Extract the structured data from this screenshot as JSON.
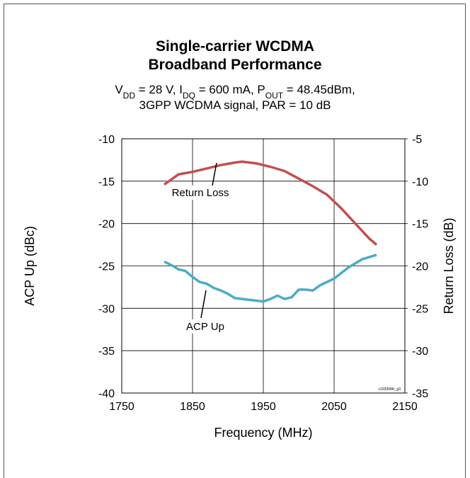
{
  "chart_data": {
    "type": "line",
    "title": [
      "Single-carrier WCDMA",
      "Broadband Performance"
    ],
    "subtitle": [
      [
        {
          "text": "V"
        },
        {
          "text": "DD",
          "sub": true
        },
        {
          "text": " = 28 V, I"
        },
        {
          "text": "DQ",
          "sub": true
        },
        {
          "text": " = 600 mA, P"
        },
        {
          "text": "OUT",
          "sub": true
        },
        {
          "text": " = 48.45dBm,"
        }
      ],
      [
        {
          "text": "3GPP WCDMA signal, PAR = 10 dB"
        }
      ]
    ],
    "xlabel": "Frequency (MHz)",
    "ylabel": "ACP Up (dBc)",
    "y2label": "Return Loss (dB)",
    "xlim": [
      1750,
      2150
    ],
    "xticks": [
      1750,
      1850,
      1950,
      2050,
      2150
    ],
    "ylim": [
      -40,
      -10
    ],
    "yticks": [
      -40,
      -35,
      -30,
      -25,
      -20,
      -15,
      -10
    ],
    "y2lim": [
      -35,
      -5
    ],
    "y2ticks": [
      -35,
      -30,
      -25,
      -20,
      -15,
      -10,
      -5
    ],
    "grid": true,
    "series": [
      {
        "name": "Return Loss",
        "color": "#c0504d",
        "axis": "y2",
        "x": [
          1810,
          1830,
          1850,
          1870,
          1890,
          1910,
          1920,
          1940,
          1960,
          1980,
          2000,
          2020,
          2040,
          2060,
          2080,
          2100,
          2110
        ],
        "values": [
          -10.4,
          -9.2,
          -8.9,
          -8.5,
          -8.1,
          -7.8,
          -7.7,
          -7.9,
          -8.3,
          -8.8,
          -9.7,
          -10.6,
          -11.6,
          -13.2,
          -15,
          -16.8,
          -17.5
        ]
      },
      {
        "name": "ACP Up",
        "color": "#4bacc6",
        "x": [
          1810,
          1820,
          1830,
          1840,
          1850,
          1860,
          1870,
          1880,
          1890,
          1900,
          1910,
          1930,
          1950,
          1960,
          1970,
          1980,
          1990,
          2000,
          2010,
          2020,
          2030,
          2050,
          2070,
          2090,
          2110
        ],
        "values": [
          -24.5,
          -24.9,
          -25.4,
          -25.6,
          -26.3,
          -26.9,
          -27.1,
          -27.6,
          -27.9,
          -28.3,
          -28.8,
          -29.0,
          -29.2,
          -28.9,
          -28.5,
          -28.9,
          -28.7,
          -27.8,
          -27.8,
          -27.9,
          -27.3,
          -26.5,
          -25.2,
          -24.2,
          -23.7
        ]
      }
    ],
    "note": "c192908fc_g3"
  }
}
